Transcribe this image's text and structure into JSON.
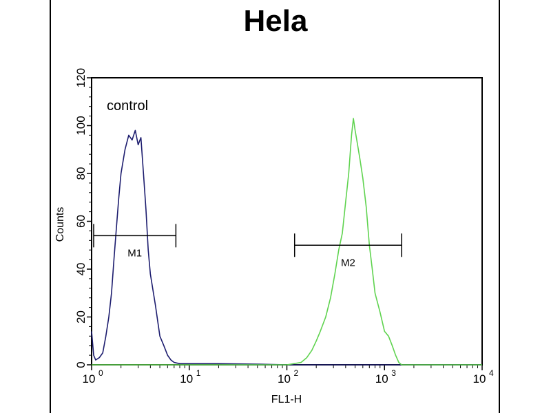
{
  "chart_data": {
    "type": "histogram",
    "title": "Hela",
    "xlabel": "FL1-H",
    "ylabel": "Counts",
    "x_scale": "log",
    "xlim": [
      1,
      10000
    ],
    "ylim": [
      0,
      120
    ],
    "x_ticks": [
      {
        "value": 1,
        "base": "10",
        "exp": "0"
      },
      {
        "value": 10,
        "base": "10",
        "exp": "1"
      },
      {
        "value": 100,
        "base": "10",
        "exp": "2"
      },
      {
        "value": 1000,
        "base": "10",
        "exp": "3"
      },
      {
        "value": 10000,
        "base": "10",
        "exp": "4"
      }
    ],
    "y_ticks": [
      0,
      20,
      40,
      60,
      80,
      100,
      120
    ],
    "grid": false,
    "annotation": "control",
    "series": [
      {
        "color": "#1c1c6e",
        "points": [
          [
            1.0,
            14
          ],
          [
            1.05,
            4
          ],
          [
            1.1,
            2
          ],
          [
            1.2,
            3
          ],
          [
            1.3,
            5
          ],
          [
            1.4,
            12
          ],
          [
            1.5,
            20
          ],
          [
            1.6,
            30
          ],
          [
            1.7,
            45
          ],
          [
            1.8,
            58
          ],
          [
            1.9,
            70
          ],
          [
            2.0,
            80
          ],
          [
            2.2,
            90
          ],
          [
            2.4,
            96
          ],
          [
            2.6,
            94
          ],
          [
            2.8,
            98
          ],
          [
            3.0,
            92
          ],
          [
            3.2,
            95
          ],
          [
            3.4,
            80
          ],
          [
            3.6,
            65
          ],
          [
            3.8,
            48
          ],
          [
            4.0,
            38
          ],
          [
            4.5,
            25
          ],
          [
            5.0,
            12
          ],
          [
            5.5,
            8
          ],
          [
            6.0,
            4
          ],
          [
            6.5,
            2
          ],
          [
            7.0,
            1
          ],
          [
            8.0,
            0.5
          ],
          [
            12,
            0.5
          ],
          [
            20,
            0.5
          ],
          [
            50,
            0.3
          ],
          [
            100,
            0
          ],
          [
            1000,
            0
          ],
          [
            10000,
            0
          ]
        ]
      },
      {
        "color": "#5fd34f",
        "points": [
          [
            1,
            0
          ],
          [
            100,
            0
          ],
          [
            140,
            1
          ],
          [
            160,
            3
          ],
          [
            180,
            6
          ],
          [
            200,
            10
          ],
          [
            220,
            14
          ],
          [
            250,
            20
          ],
          [
            280,
            28
          ],
          [
            310,
            38
          ],
          [
            340,
            48
          ],
          [
            370,
            55
          ],
          [
            400,
            68
          ],
          [
            430,
            80
          ],
          [
            460,
            96
          ],
          [
            480,
            103
          ],
          [
            500,
            98
          ],
          [
            520,
            94
          ],
          [
            560,
            86
          ],
          [
            600,
            78
          ],
          [
            650,
            66
          ],
          [
            700,
            50
          ],
          [
            750,
            40
          ],
          [
            800,
            30
          ],
          [
            900,
            22
          ],
          [
            1000,
            14
          ],
          [
            1100,
            12
          ],
          [
            1200,
            8
          ],
          [
            1300,
            4
          ],
          [
            1400,
            1
          ],
          [
            1500,
            0
          ],
          [
            10000,
            0
          ]
        ]
      }
    ],
    "markers": [
      {
        "label": "M1",
        "x_start": 1.05,
        "x_end": 7.3,
        "y": 54
      },
      {
        "label": "M2",
        "x_start": 120,
        "x_end": 1500,
        "y": 50
      }
    ]
  }
}
